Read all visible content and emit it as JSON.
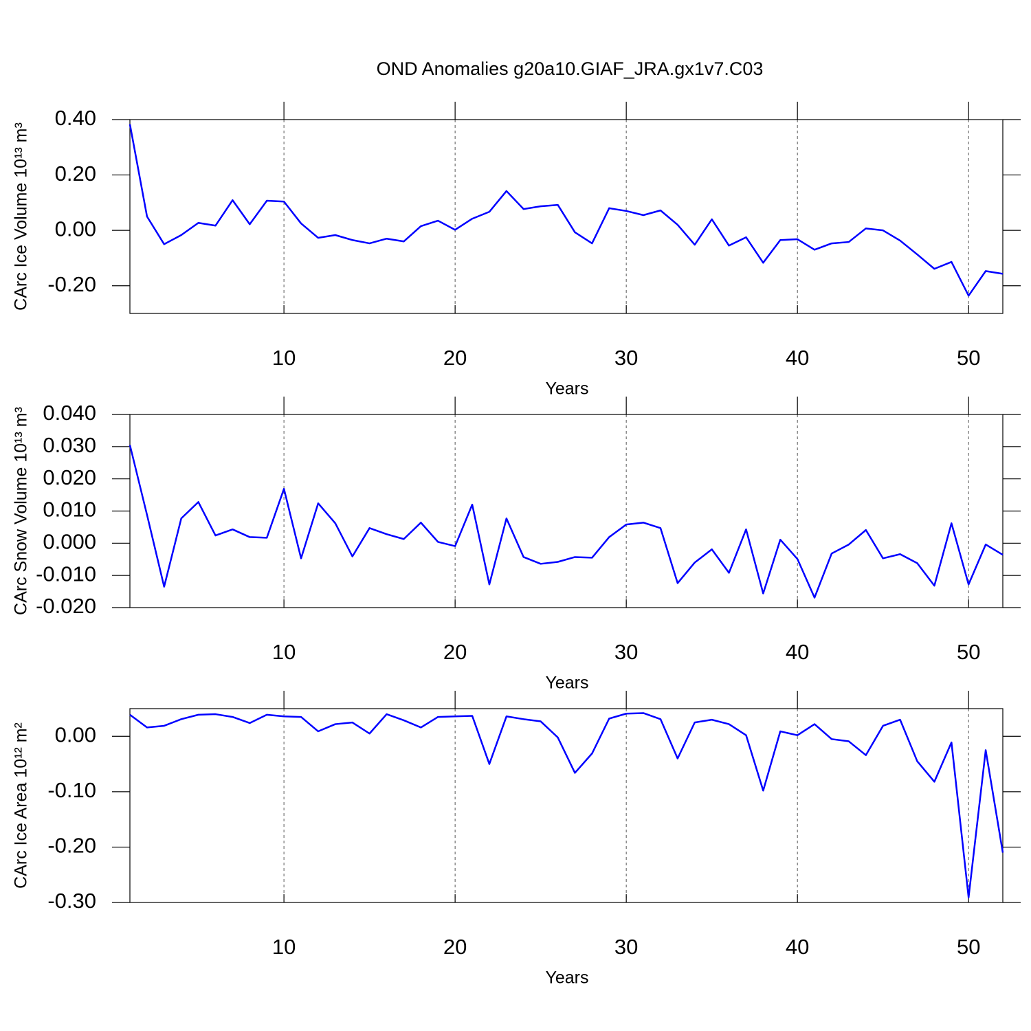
{
  "chart_data": [
    {
      "type": "line",
      "title": "OND Anomalies g20a10.GIAF_JRA.gx1v7.C03",
      "xlabel": "Years",
      "ylabel": "CArc Ice Volume 10¹³ m³",
      "x": [
        1,
        2,
        3,
        4,
        5,
        6,
        7,
        8,
        9,
        10,
        11,
        12,
        13,
        14,
        15,
        16,
        17,
        18,
        19,
        20,
        21,
        22,
        23,
        24,
        25,
        26,
        27,
        28,
        29,
        30,
        31,
        32,
        33,
        34,
        35,
        36,
        37,
        38,
        39,
        40,
        41,
        42,
        43,
        44,
        45,
        46,
        47,
        48,
        49,
        50,
        51,
        52
      ],
      "values": [
        0.383,
        0.05,
        -0.05,
        -0.017,
        0.027,
        0.017,
        0.109,
        0.022,
        0.107,
        0.104,
        0.025,
        -0.027,
        -0.017,
        -0.035,
        -0.047,
        -0.03,
        -0.04,
        0.015,
        0.035,
        0.002,
        0.042,
        0.067,
        0.142,
        0.077,
        0.087,
        0.092,
        -0.007,
        -0.047,
        0.08,
        0.07,
        0.055,
        0.072,
        0.02,
        -0.052,
        0.04,
        -0.055,
        -0.025,
        -0.117,
        -0.035,
        -0.032,
        -0.07,
        -0.047,
        -0.042,
        0.007,
        0,
        -0.037,
        -0.087,
        -0.139,
        -0.114,
        -0.236,
        -0.147,
        -0.157
      ],
      "color": "#0000ff",
      "xlim": [
        1,
        52
      ],
      "xticks": [
        10,
        20,
        30,
        40,
        50
      ],
      "ylim": [
        -0.3,
        0.4
      ],
      "yticks": [
        {
          "value": 0.4,
          "label": "0.40"
        },
        {
          "value": 0.2,
          "label": "0.20"
        },
        {
          "value": 0,
          "label": "0.00"
        },
        {
          "value": -0.2,
          "label": "-0.20"
        }
      ],
      "grid": true
    },
    {
      "type": "line",
      "xlabel": "Years",
      "ylabel": "CArc Snow Volume 10¹³ m³",
      "x": [
        1,
        2,
        3,
        4,
        5,
        6,
        7,
        8,
        9,
        10,
        11,
        12,
        13,
        14,
        15,
        16,
        17,
        18,
        19,
        20,
        21,
        22,
        23,
        24,
        25,
        26,
        27,
        28,
        29,
        30,
        31,
        32,
        33,
        34,
        35,
        36,
        37,
        38,
        39,
        40,
        41,
        42,
        43,
        44,
        45,
        46,
        47,
        48,
        49,
        50,
        51,
        52
      ],
      "values": [
        0.0305,
        0.0088,
        -0.0135,
        0.0077,
        0.0128,
        0.0024,
        0.0043,
        0.0019,
        0.0017,
        0.0169,
        -0.0047,
        0.0124,
        0.0062,
        -0.0041,
        0.0047,
        0.0028,
        0.0013,
        0.0064,
        0.0004,
        -0.0009,
        0.012,
        -0.0128,
        0.0077,
        -0.0043,
        -0.0064,
        -0.0058,
        -0.0043,
        -0.0045,
        0.0019,
        0.0058,
        0.0064,
        0.0047,
        -0.0124,
        -0.006,
        -0.0019,
        -0.0092,
        0.0043,
        -0.0156,
        0.0011,
        -0.0049,
        -0.0169,
        -0.0032,
        -0.0004,
        0.0041,
        -0.0047,
        -0.0034,
        -0.0062,
        -0.0132,
        0.0062,
        -0.0128,
        -0.0004,
        -0.0036
      ],
      "color": "#0000ff",
      "xlim": [
        1,
        52
      ],
      "xticks": [
        10,
        20,
        30,
        40,
        50
      ],
      "ylim": [
        -0.02,
        0.04
      ],
      "yticks": [
        {
          "value": 0.04,
          "label": "0.040"
        },
        {
          "value": 0.03,
          "label": "0.030"
        },
        {
          "value": 0.02,
          "label": "0.020"
        },
        {
          "value": 0.01,
          "label": "0.010"
        },
        {
          "value": 0,
          "label": "0.000"
        },
        {
          "value": -0.01,
          "label": "-0.010"
        },
        {
          "value": -0.02,
          "label": "-0.020"
        }
      ],
      "grid": true
    },
    {
      "type": "line",
      "xlabel": "Years",
      "ylabel": "CArc Ice Area 10¹² m²",
      "x": [
        1,
        2,
        3,
        4,
        5,
        6,
        7,
        8,
        9,
        10,
        11,
        12,
        13,
        14,
        15,
        16,
        17,
        18,
        19,
        20,
        21,
        22,
        23,
        24,
        25,
        26,
        27,
        28,
        29,
        30,
        31,
        32,
        33,
        34,
        35,
        36,
        37,
        38,
        39,
        40,
        41,
        42,
        43,
        44,
        45,
        46,
        47,
        48,
        49,
        50,
        51,
        52
      ],
      "values": [
        0.039,
        0.016,
        0.019,
        0.031,
        0.039,
        0.04,
        0.035,
        0.024,
        0.039,
        0.036,
        0.035,
        0.009,
        0.022,
        0.025,
        0.005,
        0.04,
        0.029,
        0.016,
        0.035,
        0.036,
        0.037,
        -0.05,
        0.036,
        0.031,
        0.027,
        -0.002,
        -0.066,
        -0.031,
        0.032,
        0.041,
        0.042,
        0.031,
        -0.04,
        0.025,
        0.03,
        0.022,
        0.002,
        -0.098,
        0.009,
        0.002,
        0.022,
        -0.005,
        -0.009,
        -0.034,
        0.019,
        0.03,
        -0.045,
        -0.082,
        -0.011,
        -0.291,
        -0.025,
        -0.21
      ],
      "color": "#0000ff",
      "xlim": [
        1,
        52
      ],
      "xticks": [
        10,
        20,
        30,
        40,
        50
      ],
      "ylim": [
        -0.3,
        0.05
      ],
      "yticks": [
        {
          "value": 0,
          "label": "0.00"
        },
        {
          "value": -0.1,
          "label": "-0.10"
        },
        {
          "value": -0.2,
          "label": "-0.20"
        },
        {
          "value": -0.3,
          "label": "-0.30"
        }
      ],
      "grid": true
    }
  ]
}
